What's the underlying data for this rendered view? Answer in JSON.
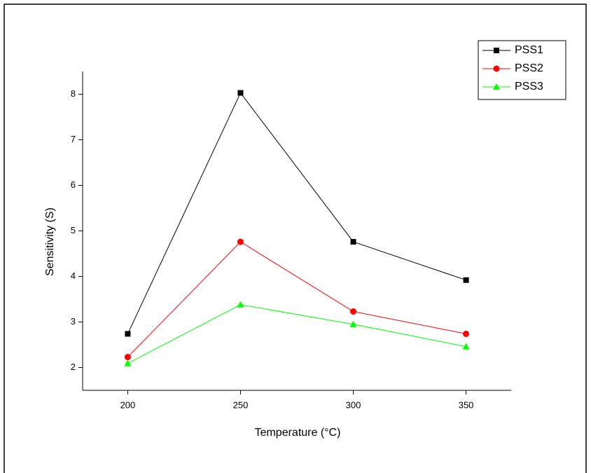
{
  "chart_data": {
    "type": "line",
    "x_label": "Temperature (°C)",
    "y_label": "Sensitivity (S)",
    "x": [
      200,
      250,
      300,
      350
    ],
    "series": [
      {
        "name": "PSS1",
        "color": "#000000",
        "marker": "square",
        "values": [
          2.74,
          8.03,
          4.76,
          3.92
        ]
      },
      {
        "name": "PSS2",
        "color": "#ff0000",
        "marker": "circle",
        "values": [
          2.23,
          4.76,
          3.23,
          2.74
        ]
      },
      {
        "name": "PSS3",
        "color": "#00ff00",
        "marker": "triangle",
        "values": [
          2.09,
          3.38,
          2.95,
          2.46
        ]
      }
    ],
    "xlim": [
      180,
      370
    ],
    "xticks": [
      200,
      250,
      300,
      350
    ],
    "ylim": [
      1.5,
      8.5
    ],
    "yticks": [
      2,
      3,
      4,
      5,
      6,
      7,
      8
    ],
    "legend": "top-right"
  }
}
